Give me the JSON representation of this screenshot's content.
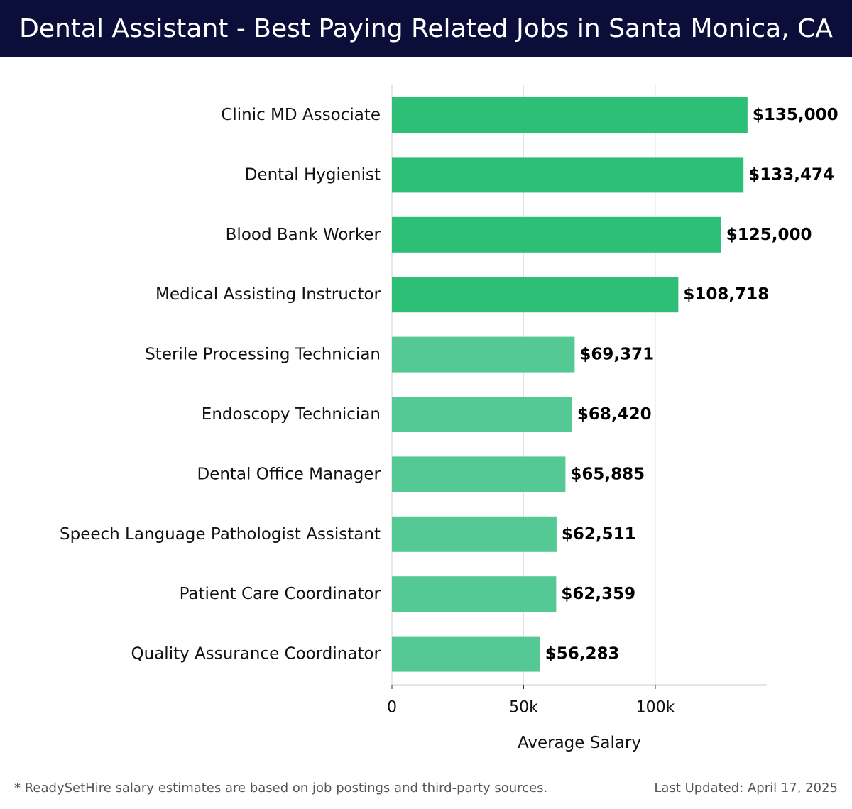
{
  "header": {
    "title": "Dental Assistant - Best Paying Related Jobs in Santa Monica, CA"
  },
  "footer": {
    "note": "* ReadySetHire salary estimates are based on job postings and third-party sources.",
    "updated": "Last Updated: April 17, 2025"
  },
  "chart_data": {
    "type": "bar",
    "orientation": "horizontal",
    "categories": [
      "Clinic MD Associate",
      "Dental Hygienist",
      "Blood Bank Worker",
      "Medical Assisting Instructor",
      "Sterile Processing Technician",
      "Endoscopy Technician",
      "Dental Office Manager",
      "Speech Language Pathologist Assistant",
      "Patient Care Coordinator",
      "Quality Assurance Coordinator"
    ],
    "values": [
      135000,
      133474,
      125000,
      108718,
      69371,
      68420,
      65885,
      62511,
      62359,
      56283
    ],
    "value_labels": [
      "$135,000",
      "$133,474",
      "$125,000",
      "$108,718",
      "$69,371",
      "$68,420",
      "$65,885",
      "$62,511",
      "$62,359",
      "$56,283"
    ],
    "xlabel": "Average Salary",
    "xticks": [
      0,
      50000,
      100000
    ],
    "xtick_labels": [
      "0",
      "50k",
      "100k"
    ],
    "xlim": [
      0,
      142000
    ],
    "grid": true,
    "colors": {
      "top": "#2ebf77",
      "rest": "#55c993",
      "grid": "#e2e2e2",
      "axis": "#cccccc"
    },
    "highlight_count": 4
  }
}
